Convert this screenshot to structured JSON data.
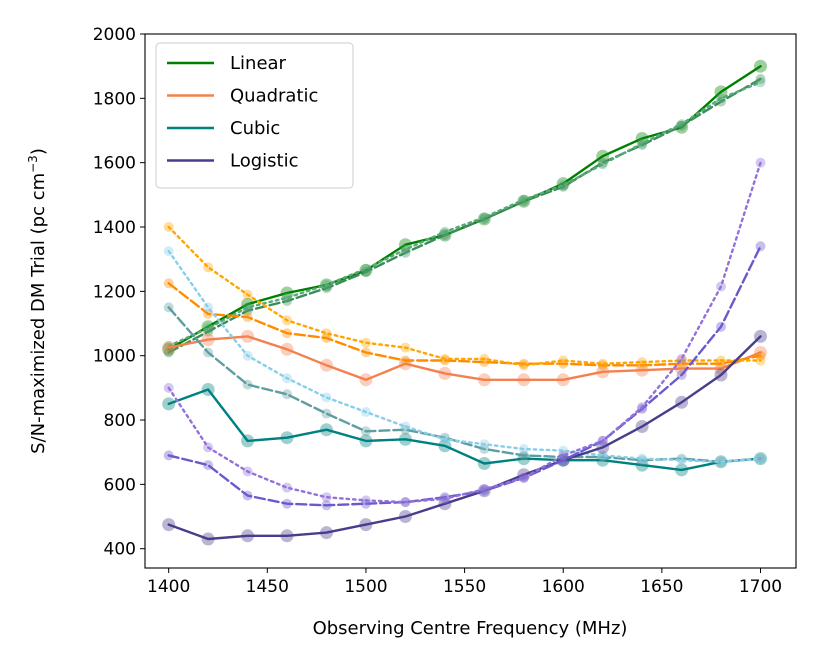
{
  "chart_data": {
    "type": "line",
    "xlabel": "Observing Centre Frequency (MHz)",
    "ylabel_main": "S/N-maximized DM Trial (pc cm",
    "ylabel_exp": "−3",
    "ylabel_close": ")",
    "xlim": [
      1388,
      1718
    ],
    "ylim": [
      340,
      2000
    ],
    "xticks": [
      1400,
      1450,
      1500,
      1550,
      1600,
      1650,
      1700
    ],
    "yticks": [
      400,
      600,
      800,
      1000,
      1200,
      1400,
      1600,
      1800,
      2000
    ],
    "legend_position": "top-left",
    "x": [
      1400,
      1420,
      1440,
      1460,
      1480,
      1500,
      1520,
      1540,
      1560,
      1580,
      1600,
      1620,
      1640,
      1660,
      1680,
      1700
    ],
    "series": [
      {
        "name": "Linear",
        "variant": "solid",
        "in_legend": true,
        "color": "#008000",
        "values": [
          1020,
          1090,
          1160,
          1195,
          1220,
          1265,
          1345,
          1375,
          1425,
          1480,
          1535,
          1620,
          1675,
          1710,
          1820,
          1900
        ]
      },
      {
        "name": "Linear",
        "variant": "dashed",
        "in_legend": false,
        "color": "#3c8c5a",
        "values": [
          1010,
          1075,
          1140,
          1170,
          1210,
          1260,
          1320,
          1375,
          1425,
          1480,
          1525,
          1600,
          1655,
          1715,
          1790,
          1860
        ]
      },
      {
        "name": "Linear",
        "variant": "dotted",
        "in_legend": false,
        "color": "#55aa77",
        "values": [
          1030,
          1085,
          1150,
          1180,
          1220,
          1270,
          1330,
          1385,
          1430,
          1485,
          1530,
          1595,
          1660,
          1720,
          1800,
          1850
        ]
      },
      {
        "name": "Quadratic",
        "variant": "solid",
        "in_legend": true,
        "color": "#f4804f",
        "values": [
          1025,
          1050,
          1060,
          1020,
          970,
          925,
          975,
          945,
          925,
          925,
          925,
          950,
          955,
          960,
          960,
          1010
        ]
      },
      {
        "name": "Quadratic",
        "variant": "dashed",
        "in_legend": false,
        "color": "#ff8c00",
        "values": [
          1225,
          1130,
          1120,
          1070,
          1055,
          1010,
          985,
          985,
          980,
          975,
          975,
          970,
          970,
          975,
          975,
          1000
        ]
      },
      {
        "name": "Quadratic",
        "variant": "dotted",
        "in_legend": false,
        "color": "#ffa500",
        "values": [
          1400,
          1275,
          1190,
          1110,
          1070,
          1040,
          1025,
          990,
          990,
          970,
          985,
          975,
          980,
          985,
          985,
          985
        ]
      },
      {
        "name": "Cubic",
        "variant": "solid",
        "in_legend": true,
        "color": "#008080",
        "values": [
          850,
          895,
          735,
          745,
          770,
          735,
          740,
          720,
          665,
          680,
          675,
          675,
          660,
          645,
          670,
          680
        ]
      },
      {
        "name": "Cubic",
        "variant": "dashed",
        "in_legend": false,
        "color": "#5f9ea0",
        "values": [
          1150,
          1010,
          910,
          880,
          820,
          765,
          770,
          745,
          710,
          690,
          685,
          685,
          675,
          680,
          670,
          680
        ]
      },
      {
        "name": "Cubic",
        "variant": "dotted",
        "in_legend": false,
        "color": "#87ceeb",
        "values": [
          1325,
          1150,
          1000,
          930,
          870,
          825,
          780,
          740,
          725,
          710,
          705,
          690,
          680,
          675,
          670,
          680
        ]
      },
      {
        "name": "Logistic",
        "variant": "solid",
        "in_legend": true,
        "color": "#483d8b",
        "values": [
          475,
          430,
          440,
          440,
          450,
          475,
          500,
          540,
          580,
          630,
          675,
          715,
          780,
          855,
          940,
          1060
        ]
      },
      {
        "name": "Logistic",
        "variant": "dashed",
        "in_legend": false,
        "color": "#6a5acd",
        "values": [
          690,
          660,
          565,
          540,
          535,
          540,
          545,
          560,
          580,
          620,
          675,
          735,
          835,
          940,
          1090,
          1340
        ]
      },
      {
        "name": "Logistic",
        "variant": "dotted",
        "in_legend": false,
        "color": "#9370db",
        "values": [
          900,
          715,
          640,
          590,
          560,
          550,
          545,
          555,
          585,
          620,
          690,
          735,
          840,
          990,
          1215,
          1600
        ]
      }
    ]
  }
}
